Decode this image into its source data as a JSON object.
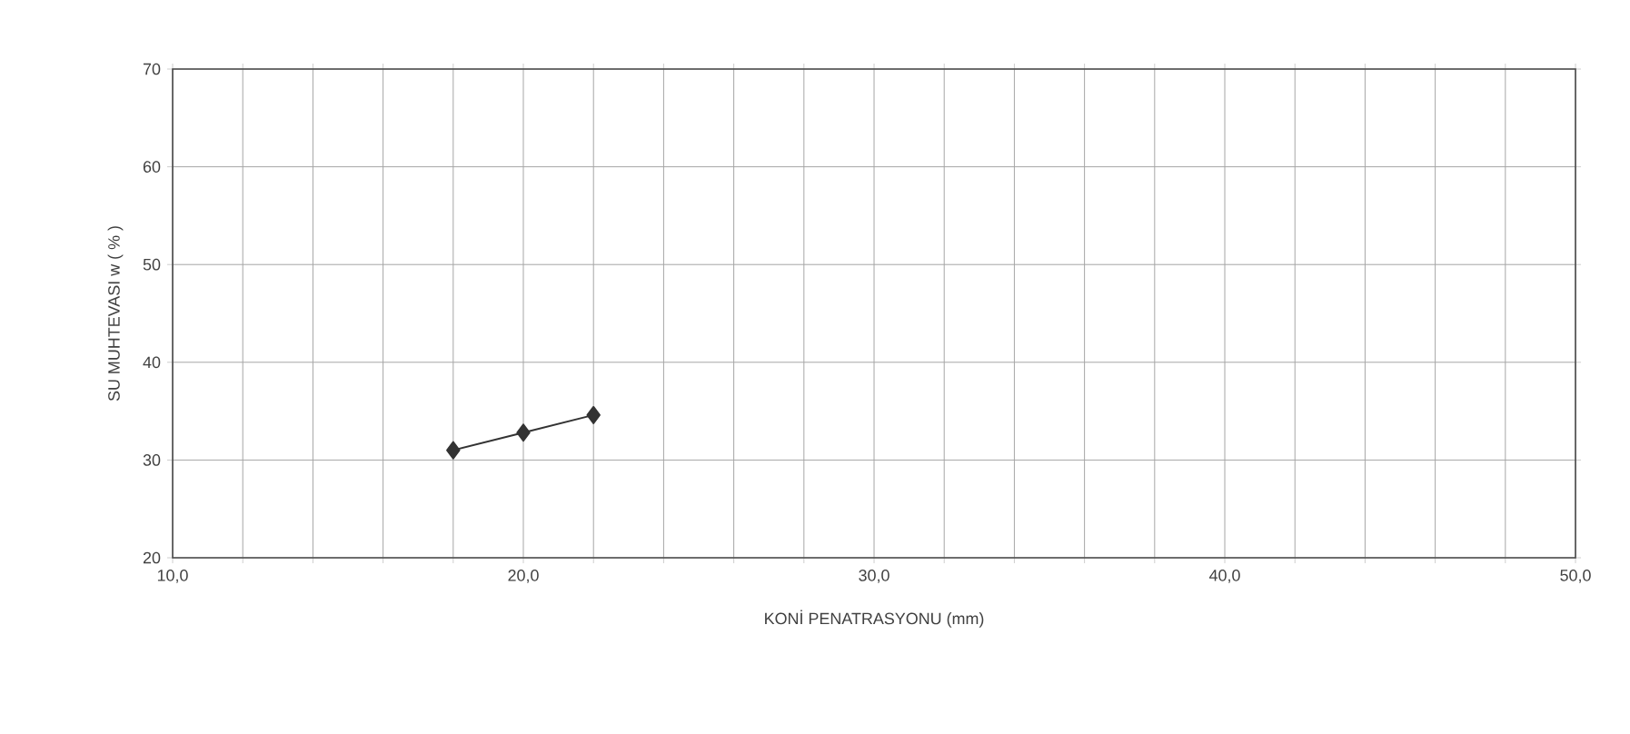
{
  "chart_data": {
    "type": "line",
    "xlabel": "KONİ PENATRASYONU (mm)",
    "ylabel": "SU MUHTEVASI w ( % )",
    "x": [
      18,
      20,
      22
    ],
    "series": [
      {
        "color": "#333333",
        "values": [
          31.0,
          32.8,
          34.6
        ]
      }
    ],
    "xlim": [
      10,
      50
    ],
    "ylim": [
      20,
      70
    ],
    "xticks": [
      {
        "value": 10,
        "label": "10,0"
      },
      {
        "value": 12,
        "label": null
      },
      {
        "value": 14,
        "label": null
      },
      {
        "value": 16,
        "label": null
      },
      {
        "value": 18,
        "label": null
      },
      {
        "value": 20,
        "label": "20,0"
      },
      {
        "value": 22,
        "label": null
      },
      {
        "value": 24,
        "label": null
      },
      {
        "value": 26,
        "label": null
      },
      {
        "value": 28,
        "label": null
      },
      {
        "value": 30,
        "label": "30,0"
      },
      {
        "value": 32,
        "label": null
      },
      {
        "value": 34,
        "label": null
      },
      {
        "value": 36,
        "label": null
      },
      {
        "value": 38,
        "label": null
      },
      {
        "value": 40,
        "label": "40,0"
      },
      {
        "value": 42,
        "label": null
      },
      {
        "value": 44,
        "label": null
      },
      {
        "value": 46,
        "label": null
      },
      {
        "value": 48,
        "label": null
      },
      {
        "value": 50,
        "label": "50,0"
      }
    ],
    "yticks": [
      20,
      30,
      40,
      50,
      60,
      70
    ],
    "grid": true,
    "marker": "diamond",
    "line_style": "solid"
  }
}
